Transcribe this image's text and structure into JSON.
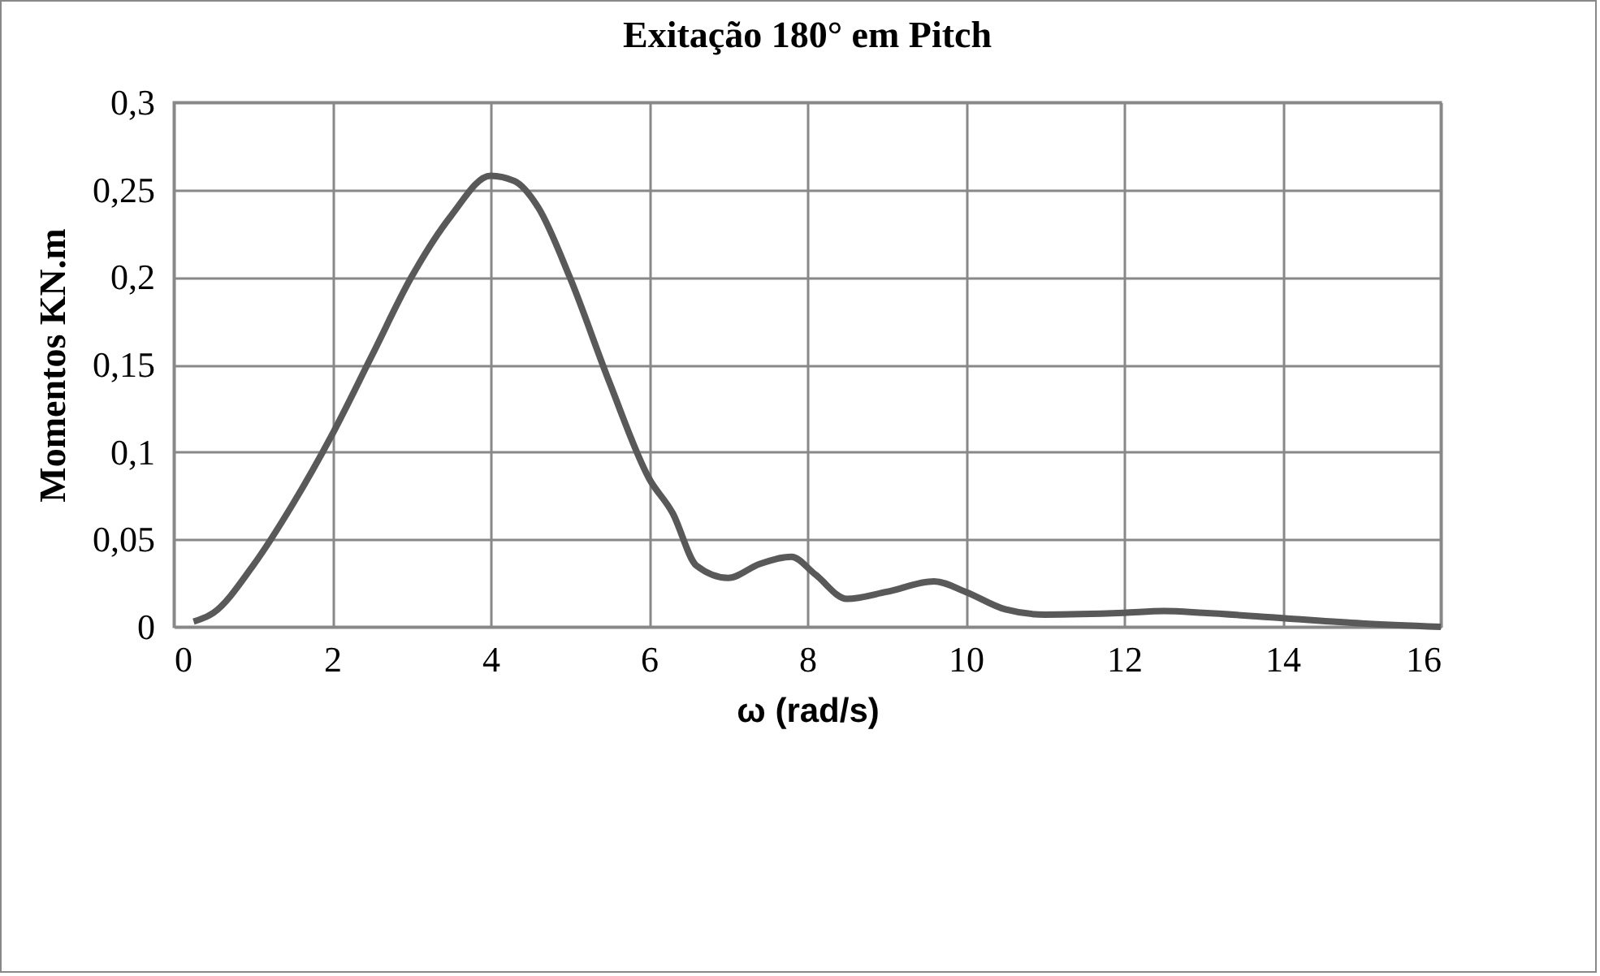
{
  "chart_data": {
    "type": "line",
    "title": "Exitação 180° em Pitch",
    "xlabel": "ω (rad/s)",
    "ylabel": "Momentos KN.m",
    "x": [
      0.25,
      0.5,
      1,
      1.5,
      2,
      2.5,
      3,
      3.5,
      4,
      4.3,
      4.6,
      5,
      5.5,
      6,
      6.3,
      6.6,
      7,
      7.4,
      7.8,
      8.1,
      8.5,
      9,
      9.6,
      10,
      10.5,
      11,
      12,
      12.5,
      13,
      14,
      15,
      16
    ],
    "series": [
      {
        "color": "#595959",
        "values": [
          0.003,
          0.008,
          0.035,
          0.07,
          0.11,
          0.155,
          0.2,
          0.235,
          0.258,
          0.255,
          0.24,
          0.2,
          0.14,
          0.085,
          0.065,
          0.035,
          0.028,
          0.036,
          0.04,
          0.03,
          0.016,
          0.02,
          0.026,
          0.02,
          0.01,
          0.007,
          0.008,
          0.009,
          0.008,
          0.005,
          0.002,
          0
        ]
      }
    ],
    "xlim": [
      0,
      16
    ],
    "xticks": [
      0,
      2,
      4,
      6,
      8,
      10,
      12,
      14,
      16
    ],
    "ylim": [
      0,
      0.3
    ],
    "yticks": [
      0,
      {
        "value": 0.05,
        "label": "0,05"
      },
      {
        "value": 0.1,
        "label": "0,1"
      },
      {
        "value": 0.15,
        "label": "0,15"
      },
      {
        "value": 0.2,
        "label": "0,2"
      },
      {
        "value": 0.25,
        "label": "0,25"
      },
      {
        "value": 0.3,
        "label": "0,3"
      }
    ],
    "grid": true,
    "legend": false,
    "marker": "none",
    "line_style": "solid"
  }
}
